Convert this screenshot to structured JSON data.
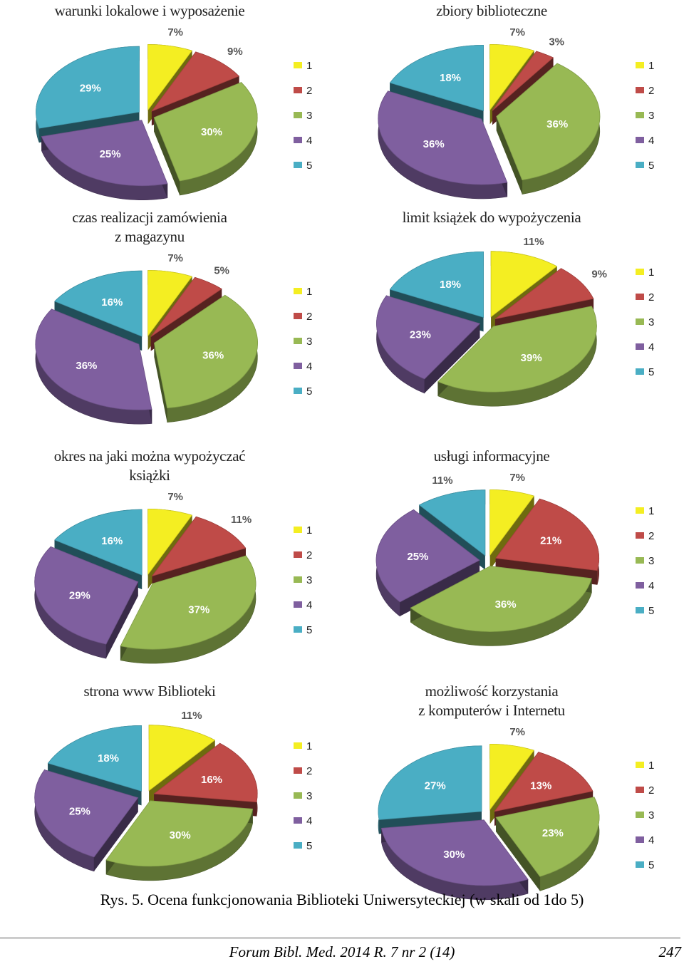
{
  "colors": {
    "1": "#f4ee22",
    "2": "#bf4b48",
    "3": "#98b954",
    "4": "#7f5f9f",
    "5": "#4aaec4"
  },
  "chart_data": [
    {
      "type": "pie",
      "title": "warunki lokalowe i wyposażenie",
      "categories": [
        "1",
        "2",
        "3",
        "4",
        "5"
      ],
      "values": [
        7,
        9,
        30,
        25,
        29
      ],
      "labels": [
        "7%",
        "9%",
        "30%",
        "25%",
        "29%"
      ],
      "legend": "right"
    },
    {
      "type": "pie",
      "title": "zbiory biblioteczne",
      "categories": [
        "1",
        "2",
        "3",
        "4",
        "5"
      ],
      "values": [
        7,
        3,
        36,
        36,
        18
      ],
      "labels": [
        "7%",
        "3%",
        "36%",
        "36%",
        "18%"
      ],
      "legend": "right"
    },
    {
      "type": "pie",
      "title": [
        "czas realizacji zamówienia",
        "z magazynu"
      ],
      "categories": [
        "1",
        "2",
        "3",
        "4",
        "5"
      ],
      "values": [
        7,
        5,
        36,
        36,
        16
      ],
      "labels": [
        "7%",
        "5%",
        "36%",
        "36%",
        "16%"
      ],
      "legend": "right"
    },
    {
      "type": "pie",
      "title": "limit książek do wypożyczenia",
      "categories": [
        "1",
        "2",
        "3",
        "4",
        "5"
      ],
      "values": [
        11,
        9,
        39,
        23,
        18
      ],
      "labels": [
        "11%",
        "9%",
        "39%",
        "23%",
        "18%"
      ],
      "legend": "right"
    },
    {
      "type": "pie",
      "title": [
        "okres na jaki można wypożyczać",
        "książki"
      ],
      "categories": [
        "1",
        "2",
        "3",
        "4",
        "5"
      ],
      "values": [
        7,
        11,
        37,
        29,
        16
      ],
      "labels": [
        "7%",
        "11%",
        "37%",
        "29%",
        "16%"
      ],
      "legend": "right"
    },
    {
      "type": "pie",
      "title": "usługi informacyjne",
      "categories": [
        "1",
        "2",
        "3",
        "4",
        "5"
      ],
      "values": [
        7,
        21,
        36,
        25,
        11
      ],
      "labels": [
        "7%",
        "21%",
        "36%",
        "25%",
        "11%"
      ],
      "legend": "right"
    },
    {
      "type": "pie",
      "title": "strona www Biblioteki",
      "categories": [
        "1",
        "2",
        "3",
        "4",
        "5"
      ],
      "values": [
        11,
        16,
        30,
        25,
        18
      ],
      "labels": [
        "11%",
        "16%",
        "30%",
        "25%",
        "18%"
      ],
      "legend": "right"
    },
    {
      "type": "pie",
      "title": [
        "możliwość korzystania",
        "z komputerów i Internetu"
      ],
      "categories": [
        "1",
        "2",
        "3",
        "4",
        "5"
      ],
      "values": [
        7,
        13,
        23,
        30,
        27
      ],
      "labels": [
        "7%",
        "13%",
        "23%",
        "30%",
        "27%"
      ],
      "legend": "right"
    }
  ],
  "caption": "Rys. 5. Ocena funkcjonowania Biblioteki Uniwersyteckiej (w skali od 1do 5)",
  "footer": {
    "journal": "Forum Bibl. Med. 2014 R. 7 nr 2 (14)",
    "page": "247"
  }
}
